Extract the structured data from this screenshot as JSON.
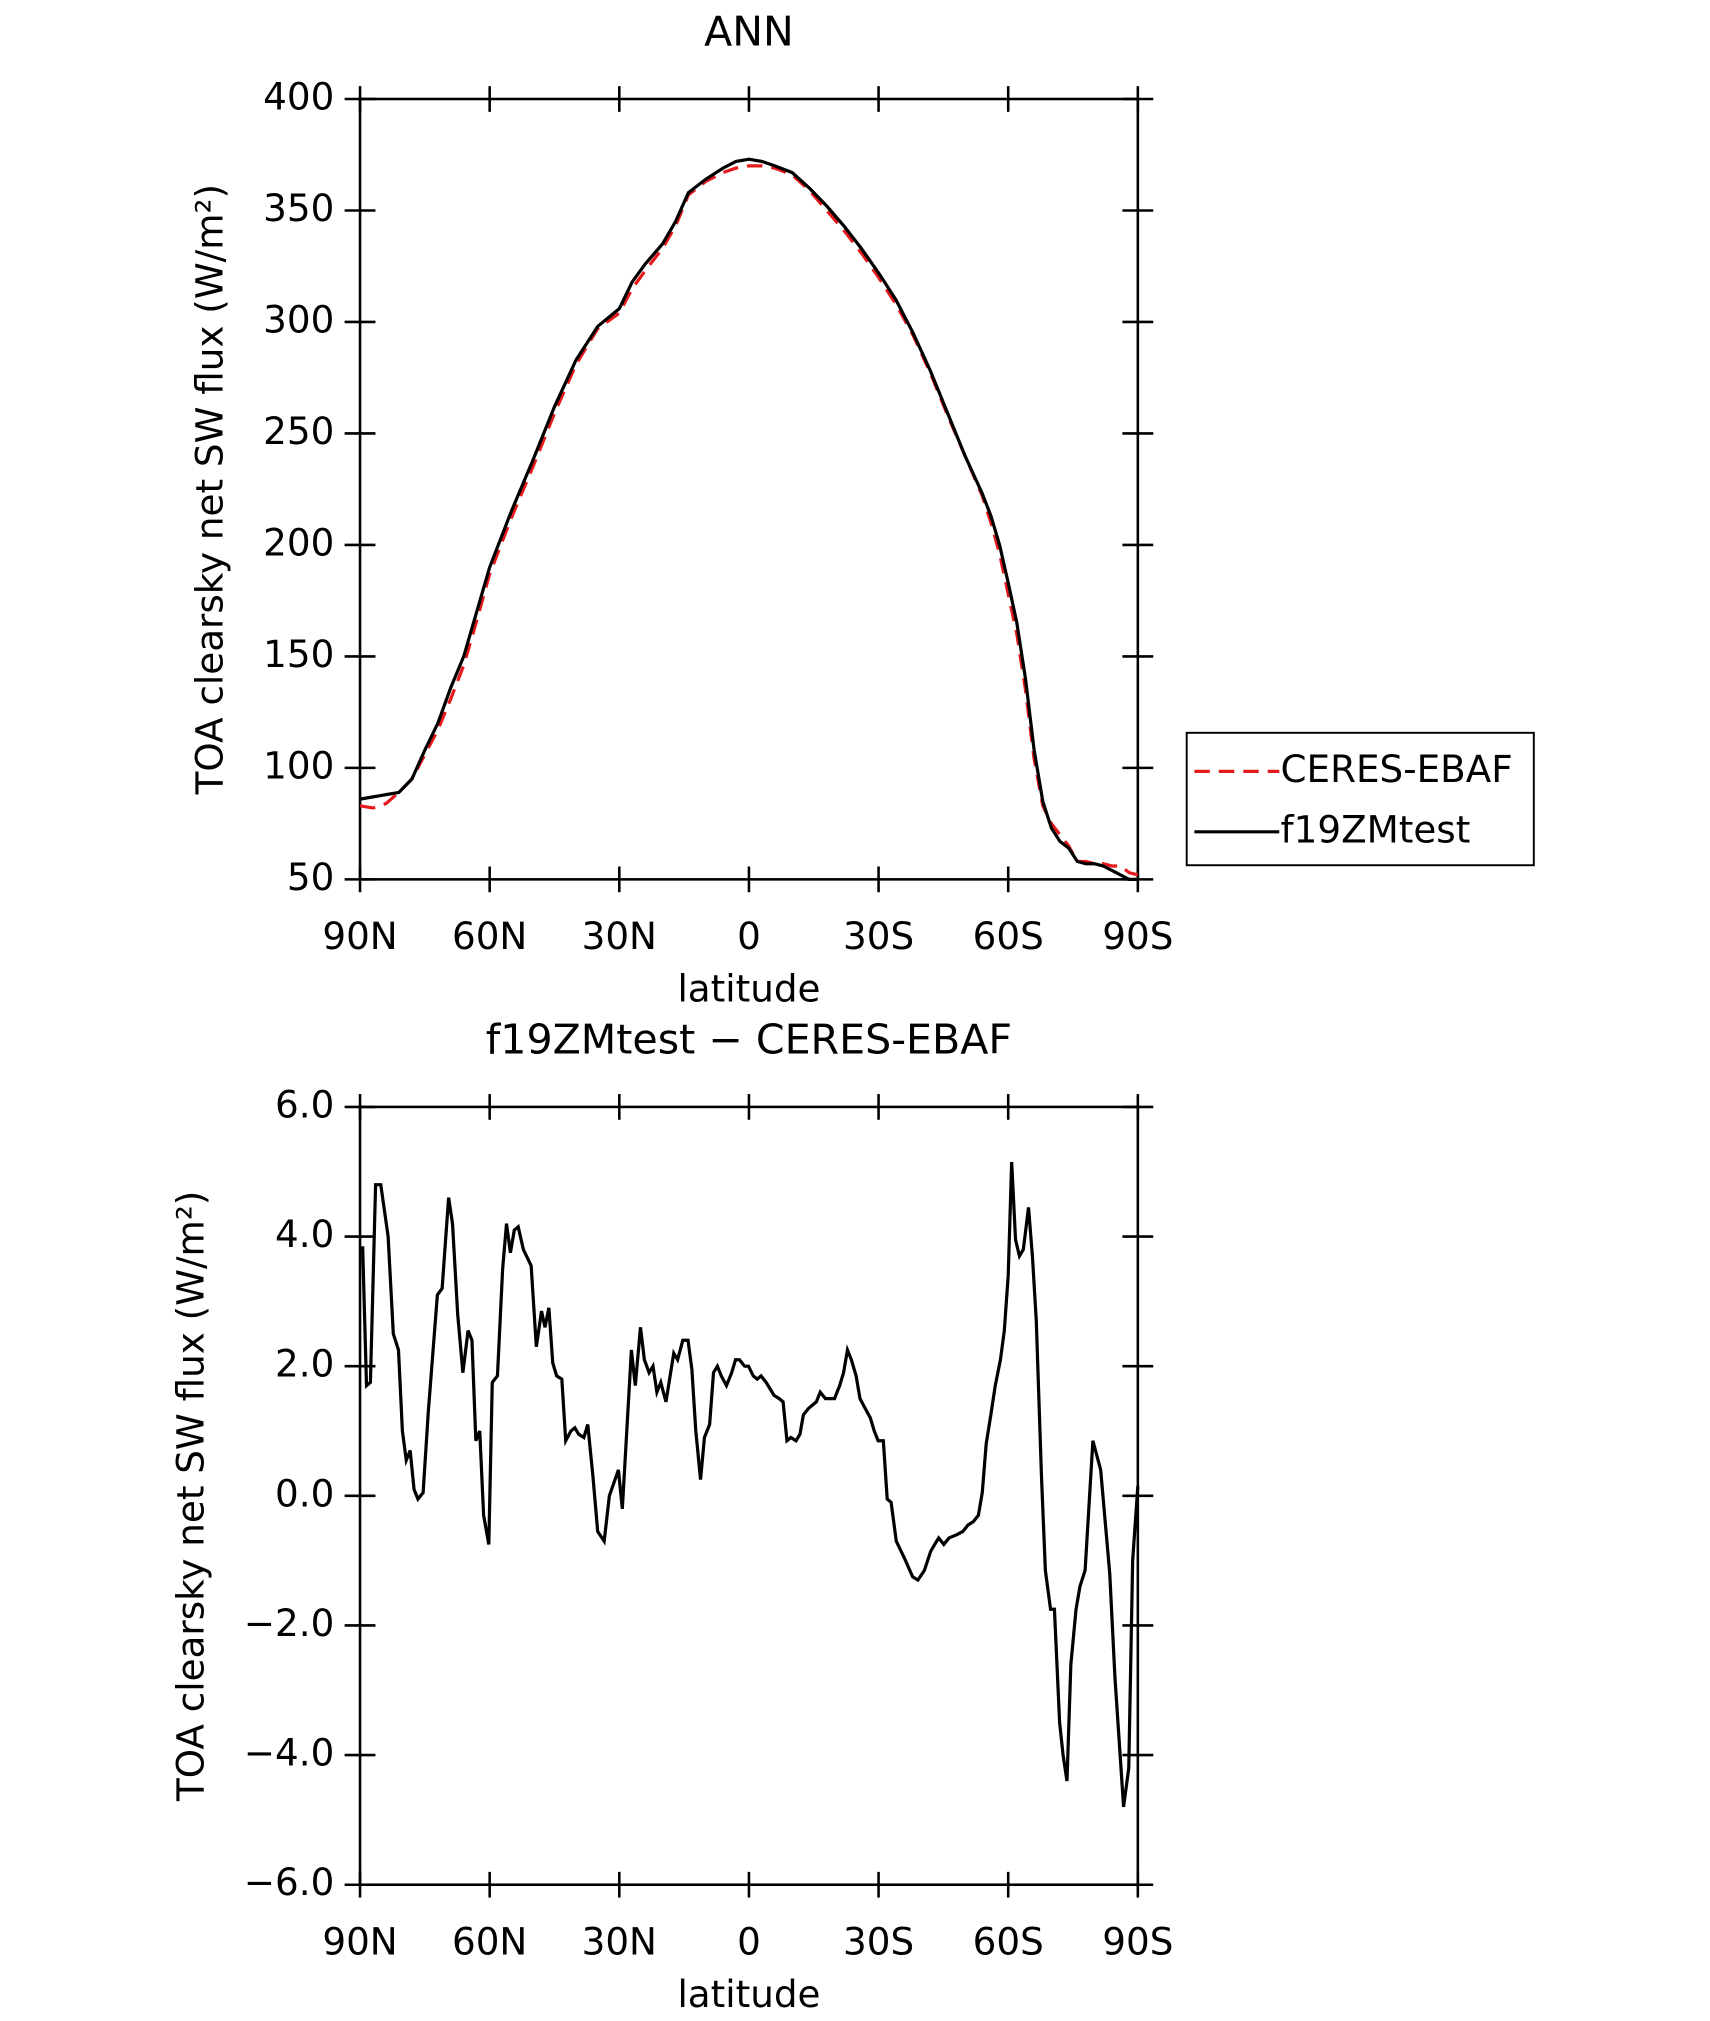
{
  "chart_data": [
    {
      "type": "line",
      "title": "ANN",
      "xlabel": "latitude",
      "ylabel": "TOA clearsky net SW flux (W/m²)",
      "x": [
        90,
        87,
        84,
        81,
        78,
        75,
        72,
        69,
        66,
        63,
        60,
        55,
        50,
        45,
        40,
        35,
        30,
        27,
        24,
        20,
        17,
        14,
        10,
        6,
        3,
        0,
        -3,
        -6,
        -10,
        -14,
        -18,
        -22,
        -26,
        -30,
        -34,
        -38,
        -42,
        -46,
        -50,
        -54,
        -56,
        -58,
        -60,
        -62,
        -64,
        -66,
        -68,
        -70,
        -72,
        -74,
        -76,
        -78,
        -80,
        -82,
        -84,
        -86,
        -88,
        -90
      ],
      "series": [
        {
          "name": "CERES-EBAF",
          "color": "#e41a1c",
          "dash": true,
          "values": [
            83,
            82,
            84,
            89,
            95,
            106,
            117,
            131,
            146,
            166,
            187,
            212,
            235,
            259,
            281,
            297,
            304,
            315,
            323,
            333,
            343,
            357,
            363,
            367,
            369,
            370,
            370,
            369,
            366,
            359,
            350,
            341,
            331,
            320,
            308,
            294,
            277,
            258,
            240,
            222,
            210,
            196,
            178,
            160,
            135,
            104,
            83,
            75,
            70,
            65,
            58,
            58,
            57,
            57,
            56,
            56,
            53,
            52
          ]
        },
        {
          "name": "f19ZMtest",
          "color": "#000000",
          "dash": false,
          "values": [
            86,
            87,
            88,
            89,
            95,
            108,
            120,
            136,
            150,
            170,
            190,
            215,
            238,
            262,
            283,
            298,
            306,
            318,
            326,
            335,
            345,
            358,
            364,
            369,
            372,
            373,
            372,
            370,
            367,
            360,
            352,
            343,
            333,
            322,
            310,
            295,
            278,
            259,
            240,
            223,
            213,
            200,
            183,
            165,
            140,
            108,
            85,
            73,
            67,
            64,
            58,
            57,
            57,
            56,
            54,
            52,
            50,
            50
          ]
        }
      ],
      "xlim": [
        90,
        -90
      ],
      "xticks": [
        {
          "value": 90,
          "label": "90N"
        },
        {
          "value": 60,
          "label": "60N"
        },
        {
          "value": 30,
          "label": "30N"
        },
        0,
        {
          "value": -30,
          "label": "30S"
        },
        {
          "value": -60,
          "label": "60S"
        },
        {
          "value": -90,
          "label": "90S"
        }
      ],
      "ylim": [
        50,
        400
      ],
      "yticks": [
        50,
        100,
        150,
        200,
        250,
        300,
        350,
        400
      ],
      "legend": "right"
    },
    {
      "type": "line",
      "title": "f19ZMtest − CERES-EBAF",
      "xlabel": "latitude",
      "ylabel": "TOA clearsky net SW flux (W/m²)",
      "x": [
        89.4,
        88.5,
        87.6,
        86.4,
        85.2,
        83.5,
        82.3,
        81.1,
        80.2,
        79.3,
        78.4,
        77.5,
        76.6,
        75.4,
        74.2,
        72.1,
        71.0,
        69.5,
        68.6,
        67.4,
        66.2,
        65.0,
        64.1,
        63.2,
        62.3,
        61.4,
        60.2,
        59.4,
        58.2,
        57.0,
        56.1,
        55.2,
        54.3,
        53.4,
        52.2,
        50.4,
        49.2,
        48.0,
        47.2,
        46.3,
        45.4,
        44.5,
        43.3,
        42.4,
        41.2,
        40.3,
        39.4,
        38.2,
        37.3,
        36.1,
        35.0,
        33.5,
        32.3,
        30.2,
        29.3,
        27.2,
        26.3,
        25.1,
        24.2,
        23.1,
        22.2,
        21.3,
        20.4,
        19.2,
        17.4,
        16.5,
        15.3,
        14.1,
        13.2,
        12.3,
        11.2,
        10.3,
        9.1,
        8.2,
        7.3,
        6.4,
        5.2,
        4.0,
        3.1,
        2.2,
        1.0,
        0.1,
        -1.0,
        -1.9,
        -2.8,
        -4.0,
        -4.9,
        -5.8,
        -7.0,
        -7.9,
        -8.8,
        -9.7,
        -10.9,
        -11.8,
        -12.6,
        -13.8,
        -14.7,
        -15.6,
        -16.5,
        -17.7,
        -18.9,
        -19.8,
        -21.0,
        -21.9,
        -22.8,
        -23.7,
        -24.8,
        -25.7,
        -26.9,
        -28.1,
        -29.0,
        -29.9,
        -31.1,
        -32.0,
        -32.9,
        -34.1,
        -35.9,
        -37.9,
        -39.1,
        -40.6,
        -42.1,
        -43.9,
        -45.1,
        -46.3,
        -48.1,
        -49.5,
        -50.7,
        -51.9,
        -53.1,
        -54.0,
        -54.9,
        -56.1,
        -57.0,
        -58.2,
        -59.1,
        -60.0,
        -60.8,
        -61.7,
        -62.6,
        -63.5,
        -64.7,
        -65.6,
        -66.5,
        -67.7,
        -68.6,
        -69.8,
        -70.7,
        -71.9,
        -72.7,
        -73.6,
        -74.5,
        -75.7,
        -76.6,
        -77.8,
        -79.6,
        -81.4,
        -83.5,
        -84.7,
        -86.7,
        -87.9,
        -88.8,
        -90.0
      ],
      "values": [
        3.85,
        1.7,
        1.75,
        4.8,
        4.8,
        4.0,
        2.5,
        2.25,
        1.0,
        0.55,
        0.7,
        0.1,
        -0.05,
        0.05,
        1.3,
        3.1,
        3.2,
        4.6,
        4.2,
        2.8,
        1.9,
        2.55,
        2.4,
        0.85,
        1.0,
        -0.3,
        -0.75,
        1.75,
        1.85,
        3.5,
        4.2,
        3.75,
        4.1,
        4.15,
        3.8,
        3.55,
        2.3,
        2.85,
        2.6,
        2.9,
        2.05,
        1.85,
        1.8,
        0.85,
        1.0,
        1.05,
        0.95,
        0.9,
        1.1,
        0.3,
        -0.55,
        -0.7,
        0.0,
        0.4,
        -0.2,
        2.25,
        1.7,
        2.6,
        2.1,
        1.9,
        2.0,
        1.6,
        1.75,
        1.45,
        2.2,
        2.1,
        2.4,
        2.4,
        1.95,
        1.0,
        0.25,
        0.9,
        1.1,
        1.9,
        2.0,
        1.85,
        1.7,
        1.9,
        2.1,
        2.1,
        2.0,
        2.0,
        1.85,
        1.8,
        1.85,
        1.75,
        1.65,
        1.55,
        1.5,
        1.45,
        0.85,
        0.9,
        0.85,
        0.95,
        1.25,
        1.35,
        1.4,
        1.45,
        1.6,
        1.5,
        1.5,
        1.5,
        1.7,
        1.9,
        2.25,
        2.1,
        1.85,
        1.5,
        1.35,
        1.2,
        1.0,
        0.85,
        0.85,
        -0.05,
        -0.1,
        -0.7,
        -0.95,
        -1.25,
        -1.3,
        -1.15,
        -0.85,
        -0.65,
        -0.75,
        -0.65,
        -0.6,
        -0.55,
        -0.45,
        -0.4,
        -0.3,
        0.05,
        0.8,
        1.3,
        1.7,
        2.1,
        2.55,
        3.4,
        5.15,
        3.95,
        3.7,
        3.8,
        4.45,
        3.7,
        2.7,
        0.3,
        -1.15,
        -1.75,
        -1.75,
        -3.5,
        -4.0,
        -4.4,
        -2.6,
        -1.75,
        -1.4,
        -1.15,
        0.85,
        0.4,
        -1.2,
        -2.8,
        -4.8,
        -4.2,
        -1.0,
        0.15
      ],
      "color": "#000000",
      "xlim": [
        90,
        -90
      ],
      "xticks": [
        {
          "value": 90,
          "label": "90N"
        },
        {
          "value": 60,
          "label": "60N"
        },
        {
          "value": 30,
          "label": "30N"
        },
        0,
        {
          "value": -30,
          "label": "30S"
        },
        {
          "value": -60,
          "label": "60S"
        },
        {
          "value": -90,
          "label": "90S"
        }
      ],
      "ylim": [
        -6,
        6
      ],
      "yticks": [
        {
          "value": -6,
          "label": "−6.0"
        },
        {
          "value": -4,
          "label": "−4.0"
        },
        {
          "value": -2,
          "label": "−2.0"
        },
        {
          "value": 0,
          "label": "0.0"
        },
        {
          "value": 2,
          "label": "2.0"
        },
        {
          "value": 4,
          "label": "4.0"
        },
        {
          "value": 6,
          "label": "6.0"
        }
      ]
    }
  ]
}
